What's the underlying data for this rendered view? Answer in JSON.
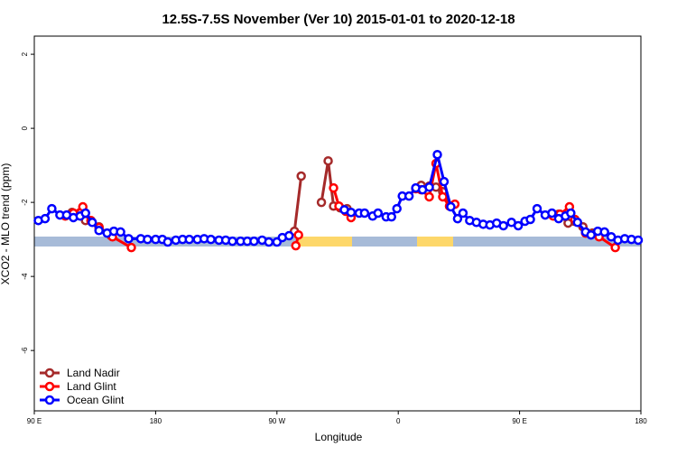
{
  "chart_data": {
    "type": "line",
    "title": "12.5S-7.5S November (Ver 10)   2015-01-01 to 2020-12-18",
    "x_label": "Longitude",
    "y_label": "XCO2 - MLO trend (ppm)",
    "xlim": [
      90,
      540
    ],
    "ylim": [
      -7.63,
      2.49
    ],
    "xticks": [
      {
        "value": 90,
        "label": "90 E"
      },
      {
        "value": 180,
        "label": "180"
      },
      {
        "value": 270,
        "label": "90 W"
      },
      {
        "value": 360,
        "label": "0"
      },
      {
        "value": 450,
        "label": "90 E"
      },
      {
        "value": 540,
        "label": "180"
      }
    ],
    "yticks": [
      2,
      0,
      -2,
      -4,
      -6
    ],
    "legend": "bottomleft",
    "series": [
      {
        "name": "Land Nadir",
        "color": "#a52a2a",
        "x": [
          118,
          128,
          138,
          147,
          null,
          283,
          288,
          null,
          303,
          308,
          312,
          317,
          322,
          null,
          377,
          383,
          388,
          393,
          399,
          null,
          479,
          486,
          497,
          504
        ],
        "values": [
          -2.27,
          -2.49,
          -2.66,
          -2.9,
          null,
          -2.78,
          -1.29,
          null,
          -2.0,
          -0.88,
          -2.1,
          -2.15,
          -2.17,
          null,
          -1.54,
          -1.56,
          -1.59,
          -1.71,
          -2.1,
          null,
          -2.32,
          -2.56,
          -2.66,
          -2.83
        ]
      },
      {
        "name": "Land Glint",
        "color": "#ff0000",
        "x": [
          113,
          119,
          126,
          132,
          138,
          148,
          162,
          null,
          284,
          286,
          null,
          312,
          316,
          321,
          325,
          null,
          373,
          377,
          383,
          388,
          393,
          398,
          402,
          null,
          475,
          480,
          487,
          491,
          499,
          509,
          521
        ],
        "values": [
          -2.37,
          -2.29,
          -2.12,
          -2.49,
          -2.68,
          -2.93,
          -3.22,
          null,
          -3.17,
          -2.88,
          null,
          -1.61,
          -2.1,
          -2.24,
          -2.41,
          null,
          -1.63,
          -1.66,
          -1.85,
          -0.95,
          -1.85,
          -2.1,
          -2.05,
          null,
          -2.37,
          -2.32,
          -2.12,
          -2.46,
          -2.83,
          -2.93,
          -3.22
        ]
      },
      {
        "name": "Ocean Glint",
        "color": "#0000ff",
        "x": [
          93,
          98,
          103,
          109,
          114,
          119,
          124,
          128,
          133,
          138,
          144,
          149,
          154,
          160,
          169,
          174,
          180,
          185,
          189,
          195,
          200,
          205,
          211,
          216,
          221,
          227,
          232,
          237,
          243,
          248,
          253,
          259,
          264,
          270,
          274,
          279,
          null,
          320,
          325,
          331,
          335,
          341,
          345,
          351,
          355,
          359,
          363,
          368,
          373,
          378,
          383,
          389,
          394,
          399,
          404,
          408,
          413,
          418,
          423,
          428,
          433,
          438,
          444,
          449,
          454,
          458,
          463,
          469,
          474,
          479,
          484,
          488,
          493,
          499,
          503,
          508,
          513,
          518,
          523,
          528,
          533,
          538
        ],
        "values": [
          -2.49,
          -2.44,
          -2.17,
          -2.34,
          -2.34,
          -2.41,
          -2.37,
          -2.29,
          -2.54,
          -2.76,
          -2.83,
          -2.78,
          -2.8,
          -2.98,
          -2.98,
          -3.0,
          -3.0,
          -3.0,
          -3.07,
          -3.02,
          -3.0,
          -3.0,
          -3.0,
          -2.98,
          -3.0,
          -3.02,
          -3.02,
          -3.05,
          -3.05,
          -3.05,
          -3.05,
          -3.02,
          -3.07,
          -3.07,
          -2.95,
          -2.9,
          null,
          -2.2,
          -2.27,
          -2.29,
          -2.29,
          -2.37,
          -2.29,
          -2.39,
          -2.39,
          -2.17,
          -1.83,
          -1.83,
          -1.61,
          -1.66,
          -1.59,
          -0.71,
          -1.44,
          -2.12,
          -2.44,
          -2.29,
          -2.49,
          -2.54,
          -2.59,
          -2.61,
          -2.56,
          -2.63,
          -2.54,
          -2.63,
          -2.51,
          -2.46,
          -2.17,
          -2.34,
          -2.29,
          -2.44,
          -2.37,
          -2.29,
          -2.54,
          -2.8,
          -2.88,
          -2.78,
          -2.8,
          -2.93,
          -3.02,
          -2.98,
          -3.0,
          -3.02
        ]
      }
    ]
  }
}
